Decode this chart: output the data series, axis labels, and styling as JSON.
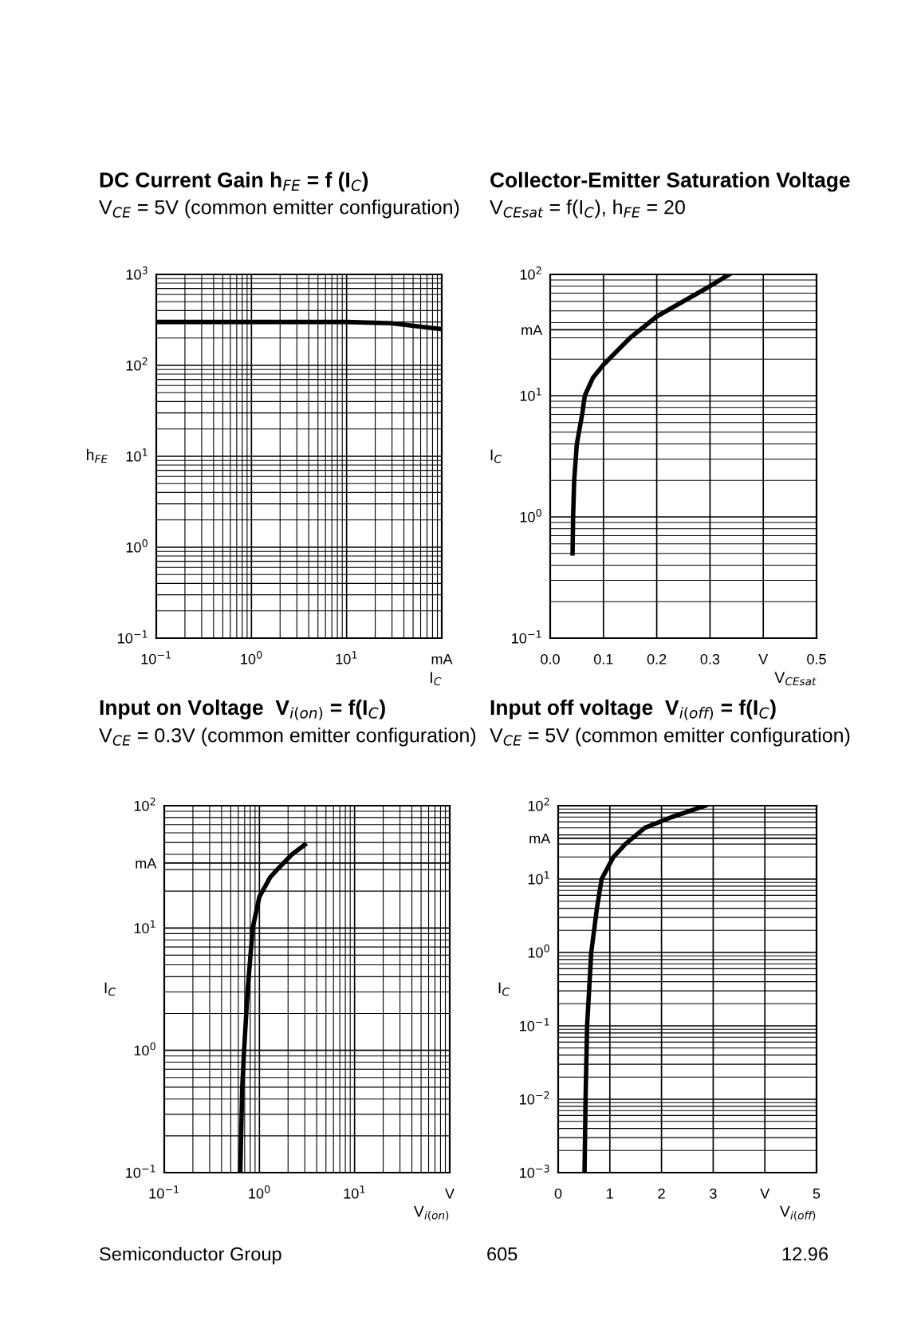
{
  "chart_data": [
    {
      "type": "line",
      "title": "DC Current Gain h$_{FE}$ = f (I$_{C}$)",
      "subtitle": "V$_{CE}$ = 5V (common emitter configuration)",
      "xlabel": "I$_{C}$",
      "ylabel": "h$_{FE}$",
      "log": "xy",
      "x": [
        0.1,
        1,
        10,
        30,
        100
      ],
      "series": [
        {
          "color": "#000000",
          "values": [
            300,
            300,
            300,
            290,
            250
          ]
        }
      ],
      "xlim": [
        0.1,
        100
      ],
      "ylim": [
        0.1,
        1000
      ],
      "xticks": [
        {
          "value": 0.1,
          "label": "10$^{−1}$"
        },
        {
          "value": 1,
          "label": "10$^{0}$"
        },
        {
          "value": 10,
          "label": "10$^{1}$"
        },
        {
          "value": 100,
          "label": "mA"
        }
      ],
      "yticks": [
        {
          "value": 0.1,
          "label": "10$^{−1}$"
        },
        {
          "value": 1,
          "label": "10$^{0}$"
        },
        {
          "value": 10,
          "label": "10$^{1}$"
        },
        {
          "value": 100,
          "label": "10$^{2}$"
        },
        {
          "value": 1000,
          "label": "10$^{3}$"
        }
      ],
      "grid": true,
      "marker": "none",
      "line_style": "solid"
    },
    {
      "type": "line",
      "title": "Collector-Emitter Saturation Voltage",
      "subtitle": "V$_{CEsat}$ = f(I$_{C}$), h$_{FE}$ = 20",
      "xlabel": "V$_{CEsat}$",
      "ylabel": "I$_{C}$",
      "log": "y",
      "x": [
        0.042,
        0.043,
        0.045,
        0.05,
        0.06,
        0.065,
        0.08,
        0.1,
        0.15,
        0.2,
        0.25,
        0.3,
        0.336
      ],
      "series": [
        {
          "color": "#000000",
          "values": [
            0.5,
            1,
            2,
            4,
            7,
            10,
            14,
            18,
            30,
            45,
            60,
            80,
            100
          ]
        }
      ],
      "xlim": [
        0,
        0.5
      ],
      "ylim": [
        0.1,
        100
      ],
      "xticks": [
        {
          "value": 0,
          "label": "0.0"
        },
        0.1,
        0.2,
        0.3,
        {
          "value": 0.4,
          "label": "V"
        },
        0.5
      ],
      "yticks": [
        {
          "value": 0.1,
          "label": "10$^{−1}$"
        },
        {
          "value": 1,
          "label": "10$^{0}$"
        },
        {
          "value": 10,
          "label": "10$^{1}$"
        },
        {
          "value": 35,
          "label": "mA"
        },
        {
          "value": 100,
          "label": "10$^{2}$"
        }
      ],
      "grid": true,
      "marker": "none",
      "line_style": "solid"
    },
    {
      "type": "line",
      "title": "Input on Voltage  V$_{i(on)}$ = f(I$_{C}$)",
      "subtitle": "V$_{CE}$ = 0.3V (common emitter configuration)",
      "xlabel": "V$_{i(on)}$",
      "ylabel": "I$_{C}$",
      "log": "xy",
      "x": [
        0.63,
        0.66,
        0.69,
        0.75,
        0.85,
        1.0,
        1.3,
        1.6,
        2.2,
        3.0
      ],
      "series": [
        {
          "color": "#000000",
          "values": [
            0.1,
            0.5,
            1,
            3,
            10,
            18,
            26,
            31,
            40,
            48
          ]
        }
      ],
      "xlim": [
        0.1,
        100
      ],
      "ylim": [
        0.1,
        100
      ],
      "xticks": [
        {
          "value": 0.1,
          "label": "10$^{−1}$"
        },
        {
          "value": 1,
          "label": "10$^{0}$"
        },
        {
          "value": 10,
          "label": "10$^{1}$"
        },
        {
          "value": 100,
          "label": "V"
        }
      ],
      "yticks": [
        {
          "value": 0.1,
          "label": "10$^{−1}$"
        },
        {
          "value": 1,
          "label": "10$^{0}$"
        },
        {
          "value": 10,
          "label": "10$^{1}$"
        },
        {
          "value": 34,
          "label": "mA"
        },
        {
          "value": 100,
          "label": "10$^{2}$"
        }
      ],
      "grid": true,
      "marker": "none",
      "line_style": "solid"
    },
    {
      "type": "line",
      "title": "Input off voltage  V$_{i(off)}$ = f(I$_{C}$)",
      "subtitle": "V$_{CE}$ = 5V (common emitter configuration)",
      "xlabel": "V$_{i(off)}$",
      "ylabel": "I$_{C}$",
      "log": "y",
      "x": [
        0.51,
        0.53,
        0.56,
        0.64,
        0.75,
        0.84,
        1.07,
        1.3,
        1.68,
        2.2,
        2.85
      ],
      "series": [
        {
          "color": "#000000",
          "values": [
            0.001,
            0.01,
            0.1,
            1,
            4,
            10,
            20,
            30,
            50,
            70,
            100
          ]
        }
      ],
      "xlim": [
        0,
        5
      ],
      "ylim": [
        0.001,
        100
      ],
      "xticks": [
        0,
        1,
        2,
        3,
        {
          "value": 4,
          "label": "V"
        },
        5
      ],
      "yticks": [
        {
          "value": 0.001,
          "label": "10$^{−3}$"
        },
        {
          "value": 0.01,
          "label": "10$^{−2}$"
        },
        {
          "value": 0.1,
          "label": "10$^{−1}$"
        },
        {
          "value": 1,
          "label": "10$^{0}$"
        },
        {
          "value": 10,
          "label": "10$^{1}$"
        },
        {
          "value": 36,
          "label": "mA"
        },
        {
          "value": 100,
          "label": "10$^{2}$"
        }
      ],
      "grid": true,
      "marker": "none",
      "line_style": "solid",
      "annotations": [
        "Semiconductor Group",
        "605",
        "12.96"
      ]
    }
  ]
}
